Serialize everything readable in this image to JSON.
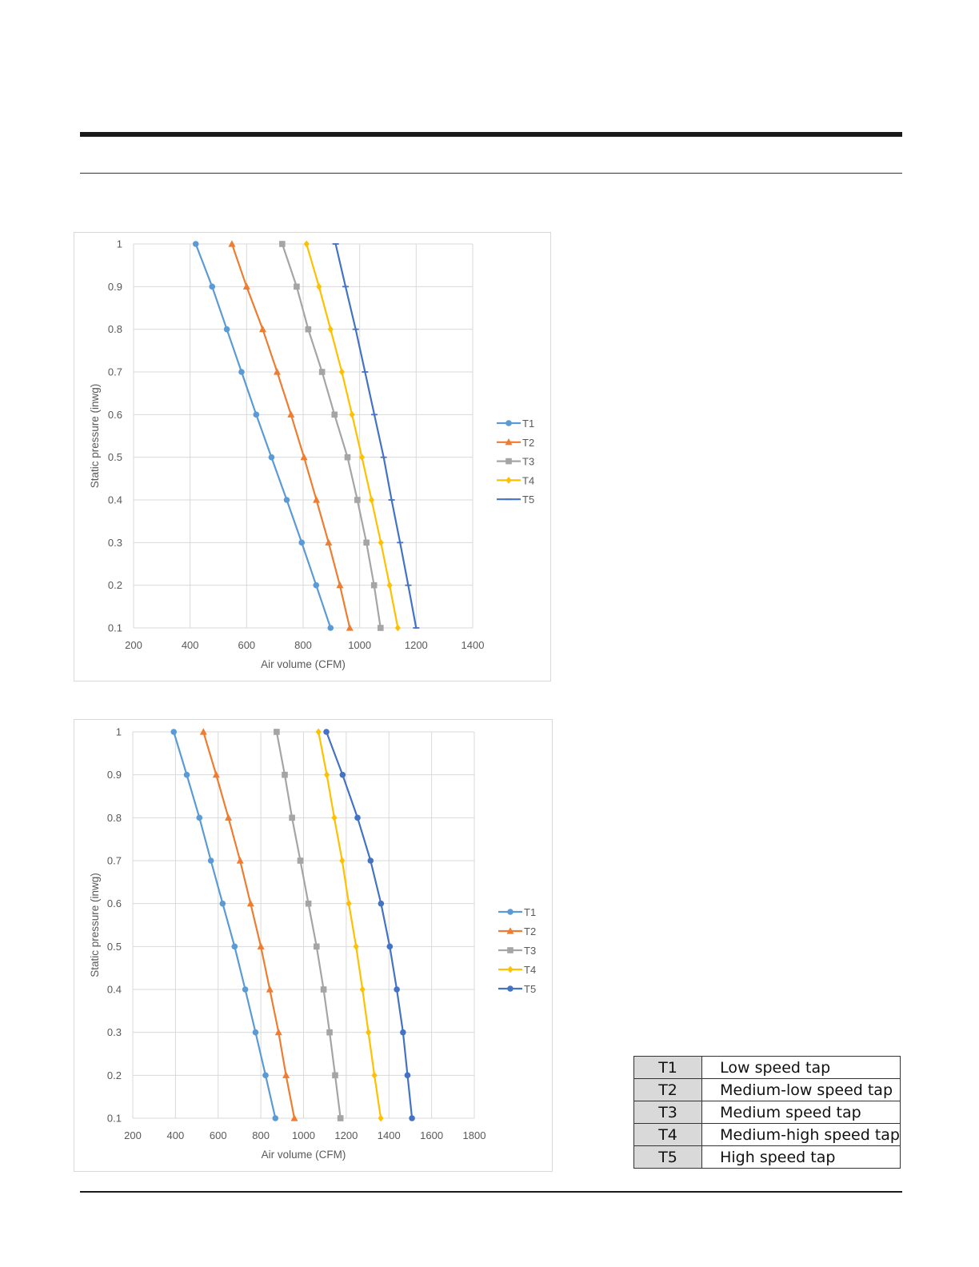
{
  "chart_data": [
    {
      "type": "line",
      "xlabel": "Air volume (CFM)",
      "ylabel": "Static pressure (inwg)",
      "xlim": [
        200,
        1400
      ],
      "ylim": [
        0.1,
        1
      ],
      "xticks": [
        "200",
        "400",
        "600",
        "800",
        "1000",
        "1200",
        "1400"
      ],
      "yticks": [
        "0.1",
        "0.2",
        "0.3",
        "0.4",
        "0.5",
        "0.6",
        "0.7",
        "0.8",
        "0.9",
        "1"
      ],
      "grid": true,
      "legend_position": "right",
      "y": [
        1,
        0.9,
        0.8,
        0.7,
        0.6,
        0.5,
        0.4,
        0.3,
        0.2,
        0.1
      ],
      "series": [
        {
          "name": "T1",
          "color": "#5b9bd5",
          "marker": "circle",
          "x": [
            420,
            478,
            530,
            582,
            634,
            688,
            742,
            795,
            846,
            897
          ]
        },
        {
          "name": "T2",
          "color": "#ed7d31",
          "marker": "triangle",
          "x": [
            548,
            600,
            657,
            708,
            757,
            803,
            847,
            890,
            930,
            965
          ]
        },
        {
          "name": "T3",
          "color": "#a5a5a5",
          "marker": "square",
          "x": [
            726,
            777,
            818,
            867,
            911,
            957,
            992,
            1024,
            1051,
            1074
          ]
        },
        {
          "name": "T4",
          "color": "#ffc000",
          "marker": "diamond",
          "x": [
            812,
            856,
            897,
            937,
            973,
            1008,
            1042,
            1075,
            1106,
            1135
          ]
        },
        {
          "name": "T5",
          "color": "#4472c4",
          "marker": "dash",
          "x": [
            915,
            950,
            986,
            1019,
            1052,
            1085,
            1113,
            1143,
            1172,
            1200
          ]
        }
      ]
    },
    {
      "type": "line",
      "xlabel": "Air volume (CFM)",
      "ylabel": "Static pressure (inwg)",
      "xlim": [
        200,
        1800
      ],
      "ylim": [
        0.1,
        1
      ],
      "xticks": [
        "200",
        "400",
        "600",
        "800",
        "1000",
        "1200",
        "1400",
        "1600",
        "1800"
      ],
      "yticks": [
        "0.1",
        "0.2",
        "0.3",
        "0.4",
        "0.5",
        "0.6",
        "0.7",
        "0.8",
        "0.9",
        "1"
      ],
      "grid": true,
      "legend_position": "right",
      "y": [
        1,
        0.9,
        0.8,
        0.7,
        0.6,
        0.5,
        0.4,
        0.3,
        0.2,
        0.1
      ],
      "series": [
        {
          "name": "T1",
          "color": "#5b9bd5",
          "marker": "circle",
          "x": [
            392,
            453,
            512,
            566,
            621,
            677,
            727,
            775,
            822,
            868
          ]
        },
        {
          "name": "T2",
          "color": "#ed7d31",
          "marker": "triangle",
          "x": [
            531,
            591,
            648,
            703,
            752,
            800,
            842,
            883,
            918,
            957
          ]
        },
        {
          "name": "T3",
          "color": "#a5a5a5",
          "marker": "square",
          "x": [
            874,
            912,
            946,
            985,
            1023,
            1061,
            1094,
            1122,
            1148,
            1173
          ]
        },
        {
          "name": "T4",
          "color": "#ffc000",
          "marker": "diamond",
          "x": [
            1070,
            1109,
            1144,
            1181,
            1212,
            1246,
            1276,
            1304,
            1332,
            1362
          ]
        },
        {
          "name": "T5",
          "color": "#4472c4",
          "marker": "circle",
          "x": [
            1107,
            1183,
            1253,
            1314,
            1363,
            1404,
            1437,
            1466,
            1487,
            1508
          ]
        }
      ]
    }
  ],
  "tap_table": [
    {
      "code": "T1",
      "description": "Low speed tap"
    },
    {
      "code": "T2",
      "description": "Medium-low speed tap"
    },
    {
      "code": "T3",
      "description": "Medium speed tap"
    },
    {
      "code": "T4",
      "description": "Medium-high speed tap"
    },
    {
      "code": "T5",
      "description": "High speed tap"
    }
  ]
}
